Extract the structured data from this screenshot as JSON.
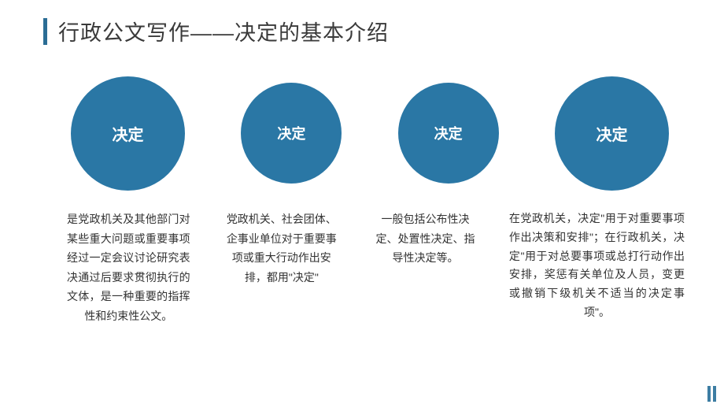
{
  "title": "行政公文写作——决定的基本介绍",
  "accent_color": "#2b6d95",
  "circle_color": "#2a77a5",
  "text_color": "#333333",
  "background_color": "#ffffff",
  "circles": [
    {
      "label": "决定",
      "size": 145,
      "fontsize": 20
    },
    {
      "label": "决定",
      "size": 128,
      "fontsize": 18
    },
    {
      "label": "决定",
      "size": 128,
      "fontsize": 18
    },
    {
      "label": "决定",
      "size": 145,
      "fontsize": 20
    }
  ],
  "descriptions": [
    "是党政机关及其他部门对某些重大问题或重要事项经过一定会议讨论研究表决通过后要求贯彻执行的文体，是一种重要的指挥性和约束性公文。",
    "党政机关、社会团体、企事业单位对于重要事项或重大行动作出安排，都用\"决定\"",
    "一般包括公布性决定、处置性决定、指导性决定等。",
    "在党政机关，决定\"用于对重要事项作出决策和安排\"；在行政机关，决定\"用于对总要事项或总打行动作出安排，奖惩有关单位及人员，变更或撤销下级机关不适当的决定事项\"。"
  ],
  "corner_accent_color": "#3d7da3"
}
